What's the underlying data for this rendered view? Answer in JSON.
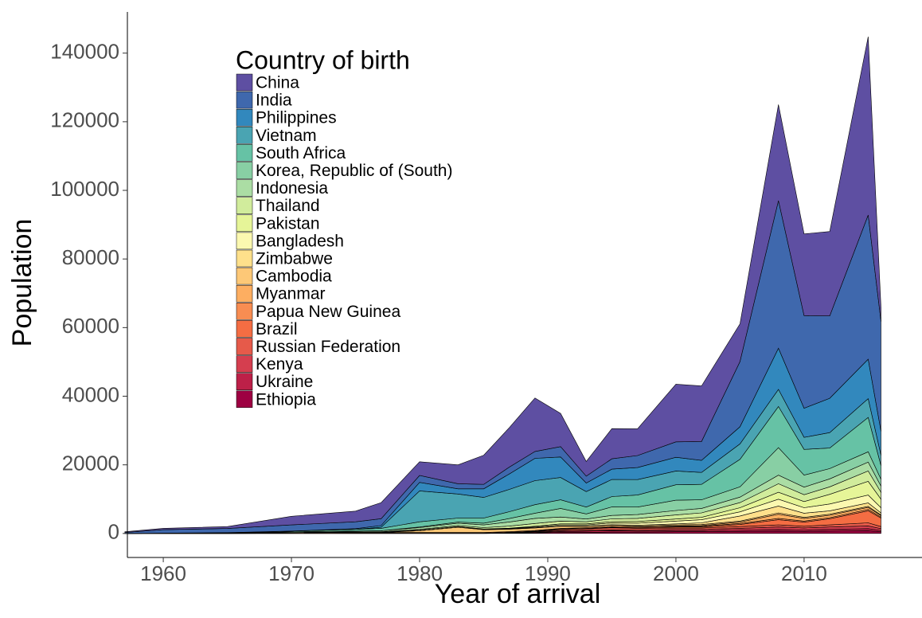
{
  "chart_data": {
    "type": "area",
    "stacked": true,
    "x_label": "Year of arrival",
    "y_label": "Population",
    "legend_title": "Country of birth",
    "x": [
      1957,
      1960,
      1965,
      1970,
      1975,
      1977,
      1980,
      1983,
      1985,
      1987,
      1989,
      1991,
      1993,
      1995,
      1997,
      2000,
      2002,
      2005,
      2008,
      2010,
      2012,
      2015,
      2016
    ],
    "xlim": [
      1957.2,
      2019.2
    ],
    "xticks": [
      1960,
      1970,
      1980,
      1990,
      2000,
      2010
    ],
    "ylim": [
      -7000,
      152000
    ],
    "yticks": [
      0,
      20000,
      40000,
      60000,
      80000,
      100000,
      120000,
      140000
    ],
    "series": [
      {
        "name": "China",
        "color": "#5e4fa2",
        "values": [
          200,
          400,
          550,
          2500,
          3100,
          4700,
          4000,
          5500,
          8500,
          11500,
          15600,
          9700,
          4300,
          8800,
          7800,
          16800,
          16200,
          11000,
          28000,
          23800,
          24600,
          52000,
          4000
        ]
      },
      {
        "name": "India",
        "color": "#3f68ad",
        "values": [
          300,
          1000,
          1200,
          1800,
          2000,
          2000,
          2000,
          1500,
          1300,
          2000,
          2000,
          3000,
          2000,
          3000,
          3500,
          4500,
          5500,
          19000,
          43000,
          27000,
          24000,
          42000,
          32000
        ]
      },
      {
        "name": "Philippines",
        "color": "#3288bd",
        "values": [
          0,
          0,
          0,
          0,
          200,
          500,
          2500,
          1500,
          2500,
          4500,
          6500,
          6000,
          2500,
          3000,
          3500,
          4000,
          3500,
          5000,
          12000,
          8500,
          10000,
          11500,
          7000
        ]
      },
      {
        "name": "Vietnam",
        "color": "#4aa4b2",
        "values": [
          0,
          0,
          0,
          0,
          0,
          300,
          9000,
          7000,
          6000,
          6500,
          7000,
          6500,
          4500,
          5000,
          4500,
          4000,
          3500,
          4500,
          5000,
          3500,
          4500,
          5500,
          3000
        ]
      },
      {
        "name": "South Africa",
        "color": "#66c2a5",
        "values": [
          0,
          0,
          50,
          200,
          500,
          700,
          1500,
          1200,
          1500,
          2000,
          2500,
          2500,
          2000,
          3000,
          3500,
          4500,
          4500,
          8000,
          12000,
          7500,
          6000,
          10000,
          4000
        ]
      },
      {
        "name": "Korea, Republic of (South)",
        "color": "#88cfa4",
        "values": [
          0,
          0,
          0,
          0,
          0,
          0,
          200,
          300,
          500,
          1000,
          1500,
          2500,
          1500,
          2500,
          2200,
          3000,
          2500,
          3000,
          8000,
          3500,
          3000,
          3000,
          2000
        ]
      },
      {
        "name": "Indonesia",
        "color": "#abdda4",
        "values": [
          0,
          50,
          100,
          200,
          200,
          300,
          500,
          700,
          800,
          1200,
          1500,
          1200,
          800,
          1000,
          1100,
          1300,
          1300,
          1600,
          2500,
          2200,
          2300,
          2600,
          1800
        ]
      },
      {
        "name": "Thailand",
        "color": "#d1ec9c",
        "values": [
          0,
          0,
          0,
          0,
          100,
          100,
          200,
          300,
          400,
          600,
          800,
          800,
          600,
          800,
          900,
          1200,
          1300,
          1500,
          2500,
          2000,
          2200,
          3000,
          2000
        ]
      },
      {
        "name": "Pakistan",
        "color": "#e6f598",
        "values": [
          0,
          0,
          0,
          0,
          0,
          0,
          0,
          0,
          100,
          100,
          200,
          300,
          300,
          400,
          500,
          600,
          700,
          1200,
          2000,
          1800,
          2800,
          4000,
          2500
        ]
      },
      {
        "name": "Bangladesh",
        "color": "#fbf8b0",
        "values": [
          0,
          0,
          0,
          0,
          0,
          0,
          0,
          0,
          0,
          100,
          200,
          300,
          300,
          500,
          600,
          800,
          900,
          1200,
          2000,
          1600,
          2000,
          2300,
          1500
        ]
      },
      {
        "name": "Zimbabwe",
        "color": "#fee08b",
        "values": [
          0,
          0,
          0,
          50,
          100,
          100,
          200,
          200,
          100,
          100,
          100,
          100,
          100,
          100,
          200,
          300,
          500,
          1500,
          2000,
          1200,
          1000,
          1000,
          600
        ]
      },
      {
        "name": "Cambodia",
        "color": "#fdc877",
        "values": [
          0,
          0,
          0,
          0,
          0,
          0,
          500,
          1500,
          800,
          700,
          700,
          600,
          400,
          400,
          300,
          300,
          300,
          300,
          400,
          300,
          300,
          300,
          200
        ]
      },
      {
        "name": "Myanmar",
        "color": "#fdae61",
        "values": [
          0,
          0,
          0,
          0,
          0,
          0,
          0,
          0,
          0,
          0,
          0,
          0,
          0,
          0,
          0,
          100,
          200,
          400,
          1200,
          800,
          700,
          600,
          400
        ]
      },
      {
        "name": "Papua New Guinea",
        "color": "#f88d52",
        "values": [
          0,
          50,
          100,
          200,
          200,
          200,
          200,
          200,
          200,
          200,
          200,
          200,
          200,
          200,
          200,
          200,
          200,
          300,
          400,
          300,
          300,
          400,
          300
        ]
      },
      {
        "name": "Brazil",
        "color": "#f46d43",
        "values": [
          0,
          0,
          0,
          0,
          0,
          0,
          0,
          0,
          0,
          100,
          100,
          200,
          200,
          200,
          200,
          300,
          300,
          600,
          1500,
          1200,
          1800,
          3500,
          2500
        ]
      },
      {
        "name": "Russian Federation",
        "color": "#e65a4a",
        "values": [
          0,
          0,
          0,
          0,
          0,
          0,
          0,
          0,
          0,
          0,
          100,
          300,
          400,
          600,
          500,
          400,
          400,
          500,
          600,
          500,
          600,
          900,
          600
        ]
      },
      {
        "name": "Kenya",
        "color": "#d53e4f",
        "values": [
          0,
          0,
          0,
          50,
          100,
          100,
          100,
          100,
          100,
          150,
          200,
          200,
          200,
          250,
          300,
          400,
          400,
          500,
          700,
          600,
          700,
          800,
          500
        ]
      },
      {
        "name": "Ukraine",
        "color": "#bd2048",
        "values": [
          0,
          0,
          0,
          0,
          0,
          0,
          0,
          0,
          0,
          0,
          100,
          300,
          400,
          400,
          300,
          300,
          300,
          400,
          500,
          400,
          500,
          600,
          400
        ]
      },
      {
        "name": "Ethiopia",
        "color": "#9e0142",
        "values": [
          0,
          0,
          0,
          0,
          0,
          0,
          0,
          0,
          0,
          100,
          200,
          300,
          300,
          400,
          400,
          500,
          500,
          600,
          700,
          600,
          700,
          800,
          500
        ]
      }
    ]
  }
}
